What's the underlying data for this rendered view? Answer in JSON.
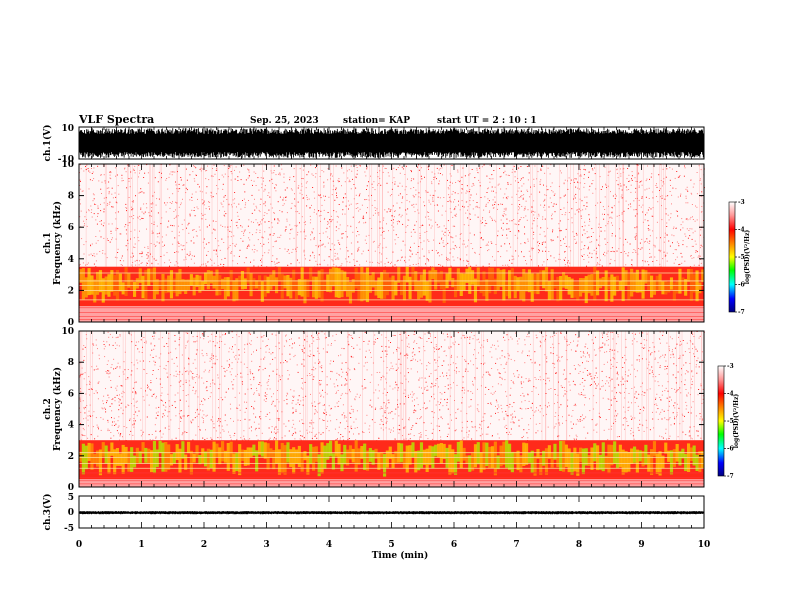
{
  "header": {
    "title": "VLF Spectra",
    "date": "Sep. 25, 2023",
    "station": "station= KAP",
    "start_ut": "start  UT =   2 : 10 : 1"
  },
  "colors": {
    "spectrogram_low_noise": "#ffffff",
    "spectrogram_mid": "#ff3030",
    "spectrogram_high": "#ffcc00",
    "colorbar": [
      "#ffffff",
      "#ff9999",
      "#ff0000",
      "#ff8800",
      "#ffff00",
      "#00ff00",
      "#00ffff",
      "#0000ff",
      "#000080"
    ],
    "waveform": "#000000"
  },
  "chart_data": [
    {
      "type": "line",
      "panel": "ch1-waveform",
      "ylabel": "ch.1(V)",
      "ylim": [
        -10,
        10
      ],
      "y_ticks": [
        "10",
        "-10"
      ],
      "xlim": [
        0,
        10
      ],
      "description_series": [
        {
          "values_envelope": [
            -10,
            10
          ]
        }
      ]
    },
    {
      "type": "heatmap",
      "panel": "ch1-spectrogram",
      "ylabel": "ch.1\nFrequency (kHz)",
      "ylim": [
        0,
        10
      ],
      "y_ticks": [
        "0",
        "2",
        "4",
        "6",
        "8",
        "10"
      ],
      "xlim": [
        0,
        10
      ],
      "colorbar": {
        "label": "log(PSD)(V²/Hz)",
        "range": [
          -7,
          -3
        ],
        "ticks": [
          "-3",
          "-4",
          "-5",
          "-6",
          "-7"
        ]
      },
      "band_strong_khz": [
        1.0,
        3.5
      ]
    },
    {
      "type": "heatmap",
      "panel": "ch2-spectrogram",
      "ylabel": "ch.2\nFrequency (kHz)",
      "ylim": [
        0,
        10
      ],
      "y_ticks": [
        "0",
        "2",
        "4",
        "6",
        "8",
        "10"
      ],
      "xlim": [
        0,
        10
      ],
      "colorbar": {
        "label": "log(PSD)(V²/Hz)",
        "range": [
          -7,
          -3
        ],
        "ticks": [
          "-3",
          "-4",
          "-5",
          "-6",
          "-7"
        ]
      },
      "band_strong_khz": [
        0.5,
        3.0
      ]
    },
    {
      "type": "line",
      "panel": "ch3-waveform",
      "ylabel": "ch.3(V)",
      "ylim": [
        -5,
        5
      ],
      "y_ticks": [
        "5",
        "0",
        "-5"
      ],
      "xlim": [
        0,
        10
      ],
      "description_series": [
        {
          "values_envelope": [
            -0.7,
            0.3
          ]
        }
      ]
    }
  ],
  "x_axis": {
    "label": "Time (min)",
    "ticks": [
      "0",
      "1",
      "2",
      "3",
      "4",
      "5",
      "6",
      "7",
      "8",
      "9",
      "10"
    ]
  }
}
